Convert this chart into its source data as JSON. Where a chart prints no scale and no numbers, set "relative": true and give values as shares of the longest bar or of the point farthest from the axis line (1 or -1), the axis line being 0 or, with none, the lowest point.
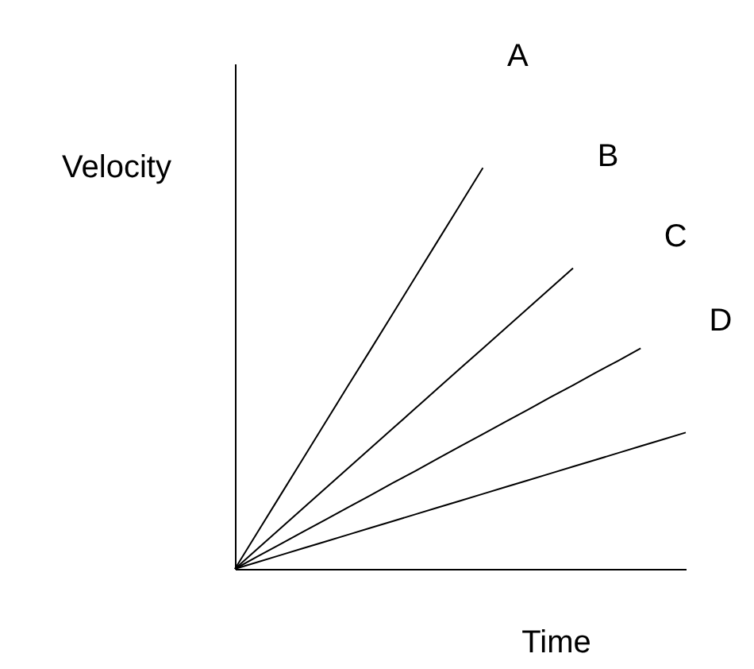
{
  "chart_data": {
    "type": "line",
    "relative": true,
    "xlabel": "Time",
    "ylabel": "Velocity",
    "legend": false,
    "grid": false,
    "tick_labels": false,
    "marker": "none",
    "line_style": "solid",
    "categories": [
      null,
      null,
      null,
      null,
      null,
      null,
      null,
      null,
      null,
      null,
      null,
      null,
      null,
      null,
      null,
      null,
      null,
      null,
      null,
      null,
      null
    ],
    "series": [
      {
        "name": "A",
        "color": "#000000",
        "values": [
          0,
          0.091,
          0.182,
          0.273,
          0.364,
          0.455,
          0.545,
          0.636,
          0.727,
          0.818,
          0.909,
          1,
          null,
          null,
          null,
          null,
          null,
          null,
          null,
          null,
          null
        ]
      },
      {
        "name": "B",
        "color": "#000000",
        "values": [
          0,
          0.05,
          0.1,
          0.15,
          0.2,
          0.25,
          0.3,
          0.35,
          0.4,
          0.45,
          0.5,
          0.55,
          0.6,
          0.65,
          0.7,
          0.75,
          null,
          null,
          null,
          null,
          null
        ]
      },
      {
        "name": "C",
        "color": "#000000",
        "values": [
          0,
          0.031,
          0.061,
          0.092,
          0.122,
          0.153,
          0.183,
          0.214,
          0.244,
          0.275,
          0.306,
          0.336,
          0.367,
          0.397,
          0.428,
          0.458,
          0.489,
          0.519,
          0.55,
          null,
          null
        ]
      },
      {
        "name": "D",
        "color": "#000000",
        "values": [
          0,
          0.017,
          0.034,
          0.051,
          0.068,
          0.085,
          0.102,
          0.119,
          0.136,
          0.153,
          0.17,
          0.187,
          0.204,
          0.221,
          0.238,
          0.255,
          0.272,
          0.289,
          0.306,
          0.323,
          0.34
        ]
      }
    ]
  }
}
